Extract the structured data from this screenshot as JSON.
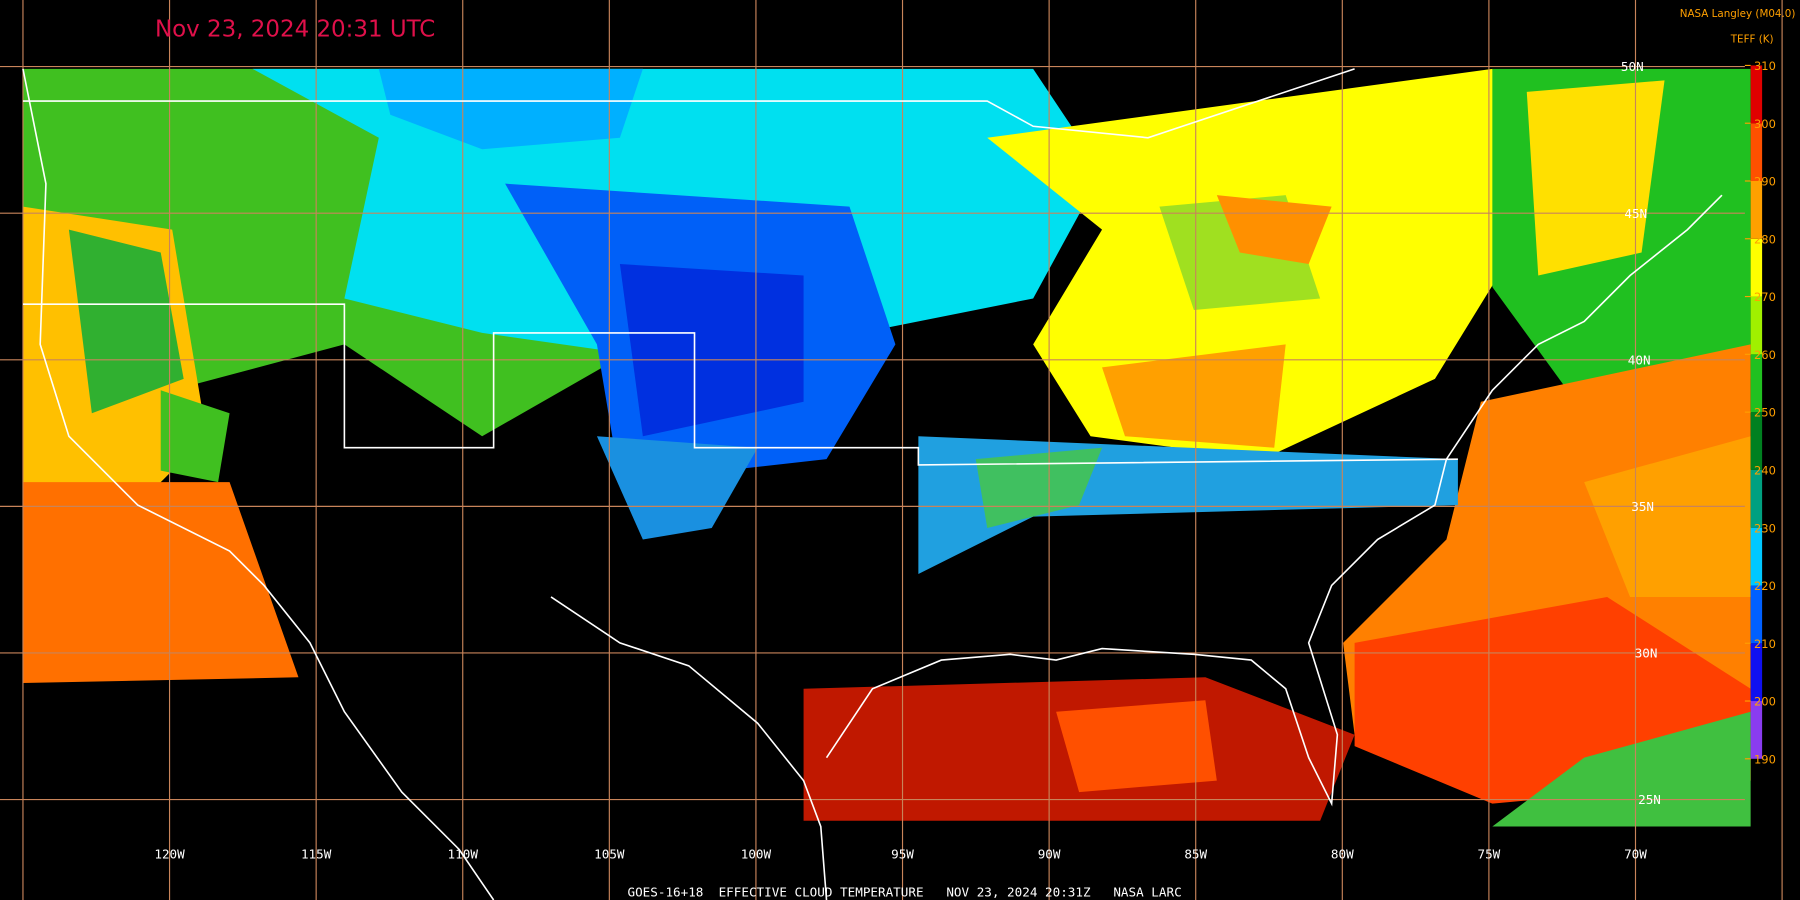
{
  "map": {
    "title": "Nov 23, 2024 20:31 UTC",
    "credit": "NASA Langley (M04.0)",
    "colorbar": {
      "label": "TEFF (K)",
      "ticks": [
        190,
        200,
        210,
        220,
        230,
        240,
        250,
        260,
        270,
        280,
        290,
        300,
        310
      ],
      "colors": [
        "#8a3cf0",
        "#1010f0",
        "#0060ff",
        "#00c8ff",
        "#00a080",
        "#008020",
        "#20c020",
        "#a0f000",
        "#ffff00",
        "#ffa000",
        "#ff5000",
        "#e00000"
      ]
    },
    "longitude_labels": [
      "120W",
      "115W",
      "110W",
      "105W",
      "100W",
      "95W",
      "90W",
      "85W",
      "80W",
      "75W",
      "70W"
    ],
    "latitude_labels": [
      "50N",
      "45N",
      "40N",
      "35N",
      "30N",
      "25N"
    ],
    "footer": "GOES-16+18  EFFECTIVE CLOUD TEMPERATURE   NOV 23, 2024 20:31Z   NASA LARC"
  }
}
